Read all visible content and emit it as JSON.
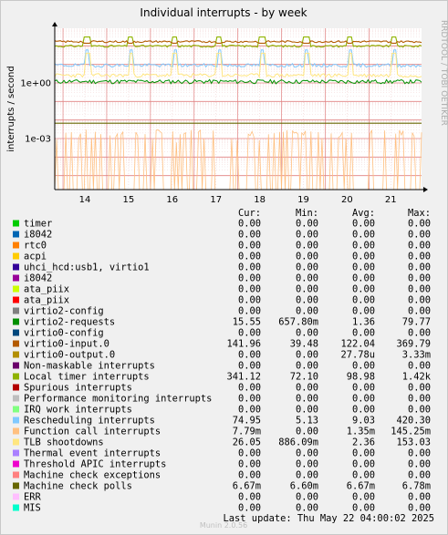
{
  "chart_data": {
    "type": "line",
    "title": "Individual interrupts - by week",
    "ylabel": "interrupts / second",
    "yscale": "log",
    "yticks": [
      "1e+00",
      "1e-03"
    ],
    "x_ticks": [
      "14",
      "15",
      "16",
      "17",
      "18",
      "19",
      "20",
      "21"
    ],
    "grid": true,
    "columns": [
      "Cur:",
      "Min:",
      "Avg:",
      "Max:"
    ],
    "series": [
      {
        "name": "timer",
        "color": "#00cc00",
        "cur": "0.00",
        "min": "0.00",
        "avg": "0.00",
        "max": "0.00"
      },
      {
        "name": "i8042",
        "color": "#0066b3",
        "cur": "0.00",
        "min": "0.00",
        "avg": "0.00",
        "max": "0.00"
      },
      {
        "name": "rtc0",
        "color": "#ff8000",
        "cur": "0.00",
        "min": "0.00",
        "avg": "0.00",
        "max": "0.00"
      },
      {
        "name": "acpi",
        "color": "#ffcc00",
        "cur": "0.00",
        "min": "0.00",
        "avg": "0.00",
        "max": "0.00"
      },
      {
        "name": "uhci_hcd:usb1, virtio1",
        "color": "#330099",
        "cur": "0.00",
        "min": "0.00",
        "avg": "0.00",
        "max": "0.00"
      },
      {
        "name": "i8042",
        "color": "#990099",
        "cur": "0.00",
        "min": "0.00",
        "avg": "0.00",
        "max": "0.00"
      },
      {
        "name": "ata_piix",
        "color": "#ccff00",
        "cur": "0.00",
        "min": "0.00",
        "avg": "0.00",
        "max": "0.00"
      },
      {
        "name": "ata_piix",
        "color": "#ff0000",
        "cur": "0.00",
        "min": "0.00",
        "avg": "0.00",
        "max": "0.00"
      },
      {
        "name": "virtio2-config",
        "color": "#808080",
        "cur": "0.00",
        "min": "0.00",
        "avg": "0.00",
        "max": "0.00"
      },
      {
        "name": "virtio2-requests",
        "color": "#008f00",
        "cur": "15.55",
        "min": "657.80m",
        "avg": "1.36",
        "max": "79.77"
      },
      {
        "name": "virtio0-config",
        "color": "#00487d",
        "cur": "0.00",
        "min": "0.00",
        "avg": "0.00",
        "max": "0.00"
      },
      {
        "name": "virtio0-input.0",
        "color": "#b35a00",
        "cur": "141.96",
        "min": "39.48",
        "avg": "122.04",
        "max": "369.79"
      },
      {
        "name": "virtio0-output.0",
        "color": "#b38f00",
        "cur": "0.00",
        "min": "0.00",
        "avg": "27.78u",
        "max": "3.33m"
      },
      {
        "name": "Non-maskable interrupts",
        "color": "#6b006b",
        "cur": "0.00",
        "min": "0.00",
        "avg": "0.00",
        "max": "0.00"
      },
      {
        "name": "Local timer interrupts",
        "color": "#8fb300",
        "cur": "341.12",
        "min": "72.10",
        "avg": "98.98",
        "max": "1.42k"
      },
      {
        "name": "Spurious interrupts",
        "color": "#b30000",
        "cur": "0.00",
        "min": "0.00",
        "avg": "0.00",
        "max": "0.00"
      },
      {
        "name": "Performance monitoring interrupts",
        "color": "#bebebe",
        "cur": "0.00",
        "min": "0.00",
        "avg": "0.00",
        "max": "0.00"
      },
      {
        "name": "IRQ work interrupts",
        "color": "#80ff80",
        "cur": "0.00",
        "min": "0.00",
        "avg": "0.00",
        "max": "0.00"
      },
      {
        "name": "Rescheduling interrupts",
        "color": "#80c9ff",
        "cur": "74.95",
        "min": "5.13",
        "avg": "9.03",
        "max": "420.30"
      },
      {
        "name": "Function call interrupts",
        "color": "#ffc080",
        "cur": "7.79m",
        "min": "0.00",
        "avg": "1.35m",
        "max": "145.25m"
      },
      {
        "name": "TLB shootdowns",
        "color": "#ffe680",
        "cur": "26.05",
        "min": "886.09m",
        "avg": "2.36",
        "max": "153.03"
      },
      {
        "name": "Thermal event interrupts",
        "color": "#aa80ff",
        "cur": "0.00",
        "min": "0.00",
        "avg": "0.00",
        "max": "0.00"
      },
      {
        "name": "Threshold APIC interrupts",
        "color": "#ee00cc",
        "cur": "0.00",
        "min": "0.00",
        "avg": "0.00",
        "max": "0.00"
      },
      {
        "name": "Machine check exceptions",
        "color": "#ff8080",
        "cur": "0.00",
        "min": "0.00",
        "avg": "0.00",
        "max": "0.00"
      },
      {
        "name": "Machine check polls",
        "color": "#666600",
        "cur": "6.67m",
        "min": "6.60m",
        "avg": "6.67m",
        "max": "6.78m"
      },
      {
        "name": "ERR",
        "color": "#ffbfff",
        "cur": "0.00",
        "min": "0.00",
        "avg": "0.00",
        "max": "0.00"
      },
      {
        "name": "MIS",
        "color": "#00ffcc",
        "cur": "0.00",
        "min": "0.00",
        "avg": "0.00",
        "max": "0.00"
      }
    ]
  },
  "footer": {
    "last_update": "Last update: Thu May 22 04:00:02 2025",
    "version": "Munin 2.0.56"
  },
  "side_label": "RRDTOOL / TOBI OETIKER"
}
